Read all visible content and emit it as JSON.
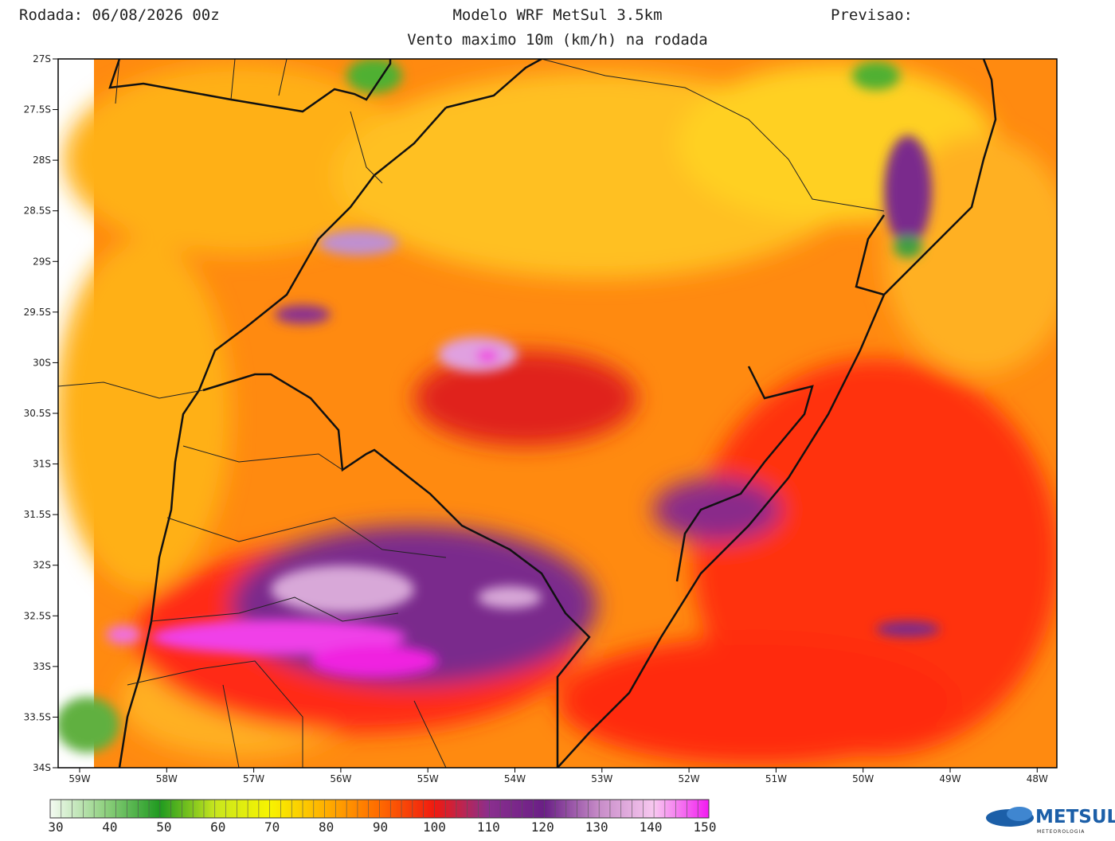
{
  "header": {
    "run": "Rodada: 06/08/2026 00z",
    "model": "Modelo WRF MetSul 3.5km",
    "forecast": "Previsao:",
    "subtitle": "Vento maximo 10m (km/h) na rodada"
  },
  "map": {
    "lat_labels": [
      "27S",
      "27.5S",
      "28S",
      "28.5S",
      "29S",
      "29.5S",
      "30S",
      "30.5S",
      "31S",
      "31.5S",
      "32S",
      "32.5S",
      "33S",
      "33.5S",
      "34S"
    ],
    "lon_labels": [
      "59W",
      "58W",
      "57W",
      "56W",
      "55W",
      "54W",
      "53W",
      "52W",
      "51W",
      "50W",
      "49W",
      "48W"
    ]
  },
  "colorbar": {
    "ticks": [
      30,
      40,
      50,
      60,
      70,
      80,
      90,
      100,
      110,
      120,
      130,
      140,
      150
    ],
    "colors": [
      "#f4fbf2",
      "#8fd07f",
      "#1f9a1f",
      "#c8e61e",
      "#f8f400",
      "#ffb000",
      "#ff6a00",
      "#f01a10",
      "#8a2f8e",
      "#6a1f86",
      "#c78cc8",
      "#f8c8f0",
      "#f21af0"
    ]
  },
  "logo": {
    "name": "METSUL",
    "tagline": "METEOROLOGIA"
  }
}
